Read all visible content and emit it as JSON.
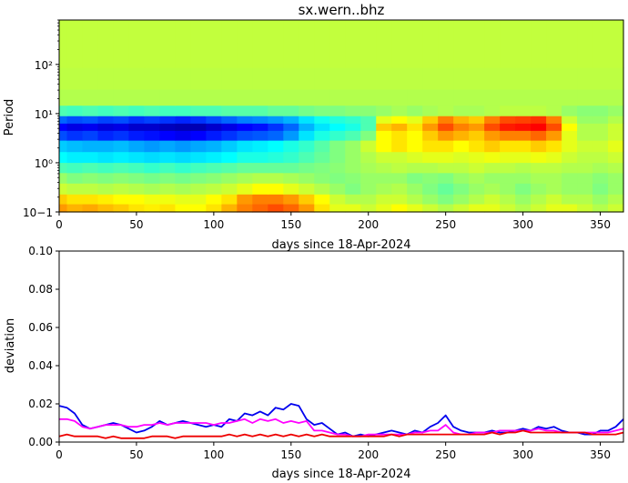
{
  "chart_data": [
    {
      "type": "heatmap",
      "title": "sx.wern..bhz",
      "xlabel": "days since 18-Apr-2024",
      "ylabel": "Period",
      "x_range": [
        0,
        365
      ],
      "x_ticks": [
        0,
        50,
        100,
        150,
        200,
        250,
        300,
        350
      ],
      "x_tick_labels": [
        "0",
        "50",
        "100",
        "150",
        "200",
        "250",
        "300",
        "350"
      ],
      "y_scale": "log",
      "y_range": [
        0.1,
        800
      ],
      "y_ticks": [
        0.1,
        1,
        10,
        100
      ],
      "y_tick_labels": [
        "10−1",
        "10⁰",
        "10¹",
        "10²"
      ],
      "colormap": "jet",
      "color_range": [
        -1,
        1
      ],
      "x": [
        0,
        10,
        20,
        30,
        40,
        50,
        60,
        70,
        80,
        90,
        100,
        110,
        120,
        130,
        140,
        150,
        160,
        170,
        180,
        190,
        200,
        210,
        220,
        230,
        240,
        250,
        260,
        270,
        280,
        290,
        300,
        310,
        320,
        330,
        340,
        350,
        360
      ],
      "y": [
        0.12,
        0.18,
        0.3,
        0.5,
        0.8,
        1.3,
        2.2,
        3.8,
        5.5,
        7.5,
        11,
        20,
        50,
        150,
        500
      ],
      "z": [
        [
          0.45,
          0.4,
          0.42,
          0.38,
          0.35,
          0.3,
          0.28,
          0.3,
          0.25,
          0.25,
          0.3,
          0.4,
          0.5,
          0.55,
          0.6,
          0.55,
          0.45,
          0.3,
          0.2,
          0.2,
          0.15,
          0.2,
          0.25,
          0.2,
          0.15,
          0.1,
          0.15,
          0.2,
          0.2,
          0.15,
          0.1,
          0.15,
          0.2,
          0.2,
          0.15,
          0.1,
          0.15
        ],
        [
          0.35,
          0.3,
          0.3,
          0.28,
          0.25,
          0.25,
          0.22,
          0.22,
          0.2,
          0.2,
          0.25,
          0.3,
          0.45,
          0.5,
          0.5,
          0.45,
          0.35,
          0.25,
          0.15,
          0.1,
          0.1,
          0.15,
          0.15,
          0.1,
          0.05,
          0.0,
          0.05,
          0.1,
          0.15,
          0.1,
          0.05,
          0.1,
          0.15,
          0.1,
          0.1,
          0.05,
          0.1
        ],
        [
          0.15,
          0.12,
          0.12,
          0.1,
          0.12,
          0.1,
          0.08,
          0.1,
          0.08,
          0.1,
          0.12,
          0.15,
          0.2,
          0.25,
          0.25,
          0.2,
          0.15,
          0.1,
          0.05,
          0.0,
          0.05,
          0.08,
          0.1,
          0.05,
          0.0,
          -0.05,
          0.0,
          0.05,
          0.08,
          0.05,
          0.0,
          0.05,
          0.08,
          0.05,
          0.05,
          0.0,
          0.05
        ],
        [
          0.05,
          0.0,
          0.02,
          0.0,
          0.02,
          0.0,
          -0.02,
          0.0,
          -0.02,
          0.0,
          0.02,
          0.05,
          0.08,
          0.1,
          0.1,
          0.08,
          0.05,
          0.02,
          0.0,
          0.02,
          0.05,
          0.05,
          0.05,
          0.0,
          0.02,
          0.0,
          0.05,
          0.08,
          0.05,
          0.05,
          0.05,
          0.08,
          0.08,
          0.05,
          0.05,
          0.02,
          0.05
        ],
        [
          -0.1,
          -0.12,
          -0.1,
          -0.12,
          -0.1,
          -0.12,
          -0.15,
          -0.12,
          -0.15,
          -0.12,
          -0.1,
          -0.08,
          -0.05,
          -0.05,
          -0.05,
          -0.05,
          -0.02,
          0.0,
          0.02,
          0.05,
          0.08,
          0.1,
          0.12,
          0.1,
          0.1,
          0.12,
          0.12,
          0.15,
          0.12,
          0.12,
          0.1,
          0.12,
          0.12,
          0.1,
          0.1,
          0.08,
          0.1
        ],
        [
          -0.25,
          -0.28,
          -0.28,
          -0.3,
          -0.28,
          -0.3,
          -0.32,
          -0.3,
          -0.32,
          -0.3,
          -0.28,
          -0.25,
          -0.2,
          -0.2,
          -0.18,
          -0.15,
          -0.1,
          -0.05,
          0.0,
          0.05,
          0.1,
          0.15,
          0.15,
          0.18,
          0.2,
          0.2,
          0.18,
          0.2,
          0.22,
          0.2,
          0.2,
          0.22,
          0.2,
          0.15,
          0.12,
          0.12,
          0.15
        ],
        [
          -0.35,
          -0.38,
          -0.4,
          -0.4,
          -0.38,
          -0.42,
          -0.45,
          -0.42,
          -0.45,
          -0.42,
          -0.4,
          -0.35,
          -0.3,
          -0.28,
          -0.25,
          -0.2,
          -0.15,
          -0.08,
          0.0,
          0.05,
          0.15,
          0.25,
          0.3,
          0.25,
          0.3,
          0.3,
          0.25,
          0.3,
          0.35,
          0.3,
          0.3,
          0.35,
          0.3,
          0.2,
          0.15,
          0.15,
          0.2
        ],
        [
          -0.6,
          -0.65,
          -0.62,
          -0.68,
          -0.65,
          -0.7,
          -0.72,
          -0.75,
          -0.78,
          -0.75,
          -0.7,
          -0.65,
          -0.6,
          -0.58,
          -0.55,
          -0.45,
          -0.3,
          -0.2,
          -0.15,
          -0.1,
          0.0,
          0.25,
          0.3,
          0.25,
          0.35,
          0.45,
          0.4,
          0.35,
          0.45,
          0.5,
          0.5,
          0.55,
          0.45,
          0.2,
          0.1,
          0.1,
          0.15
        ],
        [
          -0.75,
          -0.8,
          -0.78,
          -0.82,
          -0.8,
          -0.85,
          -0.85,
          -0.88,
          -0.9,
          -0.9,
          -0.85,
          -0.8,
          -0.75,
          -0.72,
          -0.65,
          -0.55,
          -0.4,
          -0.3,
          -0.25,
          -0.2,
          -0.1,
          0.35,
          0.4,
          0.3,
          0.45,
          0.6,
          0.5,
          0.45,
          0.6,
          0.7,
          0.72,
          0.75,
          0.6,
          0.25,
          0.1,
          0.1,
          0.15
        ],
        [
          -0.55,
          -0.6,
          -0.58,
          -0.62,
          -0.6,
          -0.65,
          -0.62,
          -0.65,
          -0.68,
          -0.65,
          -0.6,
          -0.55,
          -0.5,
          -0.48,
          -0.45,
          -0.4,
          -0.3,
          -0.22,
          -0.18,
          -0.15,
          -0.1,
          0.2,
          0.25,
          0.2,
          0.35,
          0.5,
          0.4,
          0.35,
          0.5,
          0.6,
          0.62,
          0.65,
          0.5,
          0.15,
          0.05,
          0.05,
          0.1
        ],
        [
          -0.1,
          -0.12,
          -0.1,
          -0.12,
          -0.1,
          -0.12,
          -0.1,
          -0.12,
          -0.12,
          -0.1,
          -0.1,
          -0.08,
          -0.08,
          -0.08,
          -0.05,
          -0.05,
          -0.02,
          0.0,
          0.0,
          0.02,
          0.02,
          0.05,
          0.08,
          0.05,
          0.08,
          0.1,
          0.08,
          0.08,
          0.1,
          0.12,
          0.12,
          0.12,
          0.1,
          0.05,
          0.02,
          0.02,
          0.05
        ],
        [
          0.1,
          0.1,
          0.1,
          0.1,
          0.1,
          0.1,
          0.1,
          0.1,
          0.1,
          0.1,
          0.1,
          0.1,
          0.1,
          0.1,
          0.1,
          0.1,
          0.1,
          0.1,
          0.1,
          0.1,
          0.1,
          0.1,
          0.1,
          0.1,
          0.1,
          0.1,
          0.1,
          0.1,
          0.1,
          0.1,
          0.1,
          0.1,
          0.1,
          0.1,
          0.1,
          0.1,
          0.1
        ],
        [
          0.12,
          0.12,
          0.12,
          0.12,
          0.12,
          0.12,
          0.12,
          0.12,
          0.12,
          0.12,
          0.12,
          0.12,
          0.12,
          0.12,
          0.12,
          0.12,
          0.12,
          0.12,
          0.12,
          0.12,
          0.12,
          0.12,
          0.12,
          0.12,
          0.12,
          0.12,
          0.12,
          0.12,
          0.12,
          0.12,
          0.12,
          0.12,
          0.12,
          0.12,
          0.12,
          0.12,
          0.12
        ],
        [
          0.13,
          0.13,
          0.13,
          0.13,
          0.13,
          0.13,
          0.13,
          0.13,
          0.13,
          0.13,
          0.13,
          0.13,
          0.13,
          0.13,
          0.13,
          0.13,
          0.13,
          0.13,
          0.13,
          0.13,
          0.13,
          0.13,
          0.13,
          0.13,
          0.13,
          0.13,
          0.13,
          0.13,
          0.13,
          0.13,
          0.13,
          0.13,
          0.13,
          0.13,
          0.13,
          0.13,
          0.13
        ],
        [
          0.13,
          0.13,
          0.13,
          0.13,
          0.13,
          0.13,
          0.13,
          0.13,
          0.13,
          0.13,
          0.13,
          0.13,
          0.13,
          0.13,
          0.13,
          0.13,
          0.13,
          0.13,
          0.13,
          0.13,
          0.13,
          0.13,
          0.13,
          0.13,
          0.13,
          0.13,
          0.13,
          0.13,
          0.13,
          0.13,
          0.13,
          0.13,
          0.13,
          0.13,
          0.13,
          0.13,
          0.13
        ]
      ]
    },
    {
      "type": "line",
      "title": "",
      "xlabel": "days since 18-Apr-2024",
      "ylabel": "deviation",
      "xlim": [
        0,
        365
      ],
      "ylim": [
        0,
        0.1
      ],
      "x_ticks": [
        0,
        50,
        100,
        150,
        200,
        250,
        300,
        350
      ],
      "x_tick_labels": [
        "0",
        "50",
        "100",
        "150",
        "200",
        "250",
        "300",
        "350"
      ],
      "y_ticks": [
        0,
        0.02,
        0.04,
        0.06,
        0.08,
        0.1
      ],
      "y_tick_labels": [
        "0.00",
        "0.02",
        "0.04",
        "0.06",
        "0.08",
        "0.10"
      ],
      "x": [
        0,
        5,
        10,
        15,
        20,
        25,
        30,
        35,
        40,
        45,
        50,
        55,
        60,
        65,
        70,
        75,
        80,
        85,
        90,
        95,
        100,
        105,
        110,
        115,
        120,
        125,
        130,
        135,
        140,
        145,
        150,
        155,
        160,
        165,
        170,
        175,
        180,
        185,
        190,
        195,
        200,
        205,
        210,
        215,
        220,
        225,
        230,
        235,
        240,
        245,
        250,
        255,
        260,
        265,
        270,
        275,
        280,
        285,
        290,
        295,
        300,
        305,
        310,
        315,
        320,
        325,
        330,
        335,
        340,
        345,
        350,
        355,
        360,
        365
      ],
      "series": [
        {
          "color": "#0000ee",
          "values": [
            0.019,
            0.018,
            0.015,
            0.009,
            0.007,
            0.008,
            0.009,
            0.01,
            0.009,
            0.007,
            0.005,
            0.006,
            0.008,
            0.011,
            0.009,
            0.01,
            0.011,
            0.01,
            0.009,
            0.008,
            0.009,
            0.008,
            0.012,
            0.011,
            0.015,
            0.014,
            0.016,
            0.014,
            0.018,
            0.017,
            0.02,
            0.019,
            0.012,
            0.009,
            0.01,
            0.007,
            0.004,
            0.005,
            0.003,
            0.004,
            0.003,
            0.004,
            0.005,
            0.006,
            0.005,
            0.004,
            0.006,
            0.005,
            0.008,
            0.01,
            0.014,
            0.008,
            0.006,
            0.005,
            0.005,
            0.005,
            0.006,
            0.005,
            0.005,
            0.006,
            0.007,
            0.006,
            0.008,
            0.007,
            0.008,
            0.006,
            0.005,
            0.005,
            0.004,
            0.004,
            0.006,
            0.006,
            0.008,
            0.012
          ]
        },
        {
          "color": "#ff00ff",
          "values": [
            0.012,
            0.012,
            0.011,
            0.008,
            0.007,
            0.008,
            0.009,
            0.009,
            0.009,
            0.008,
            0.008,
            0.009,
            0.009,
            0.01,
            0.009,
            0.01,
            0.01,
            0.01,
            0.01,
            0.01,
            0.009,
            0.01,
            0.01,
            0.011,
            0.012,
            0.01,
            0.012,
            0.011,
            0.012,
            0.01,
            0.011,
            0.01,
            0.011,
            0.006,
            0.006,
            0.005,
            0.004,
            0.004,
            0.003,
            0.003,
            0.004,
            0.004,
            0.004,
            0.004,
            0.004,
            0.004,
            0.005,
            0.005,
            0.006,
            0.006,
            0.009,
            0.005,
            0.004,
            0.004,
            0.005,
            0.005,
            0.005,
            0.006,
            0.006,
            0.006,
            0.006,
            0.006,
            0.007,
            0.006,
            0.006,
            0.005,
            0.005,
            0.005,
            0.005,
            0.005,
            0.005,
            0.005,
            0.006,
            0.007
          ]
        },
        {
          "color": "#ee0000",
          "values": [
            0.003,
            0.004,
            0.003,
            0.003,
            0.003,
            0.003,
            0.002,
            0.003,
            0.002,
            0.002,
            0.002,
            0.002,
            0.003,
            0.003,
            0.003,
            0.002,
            0.003,
            0.003,
            0.003,
            0.003,
            0.003,
            0.003,
            0.004,
            0.003,
            0.004,
            0.003,
            0.004,
            0.003,
            0.004,
            0.003,
            0.004,
            0.003,
            0.004,
            0.003,
            0.004,
            0.003,
            0.003,
            0.003,
            0.003,
            0.003,
            0.003,
            0.003,
            0.003,
            0.004,
            0.003,
            0.004,
            0.004,
            0.004,
            0.004,
            0.004,
            0.004,
            0.004,
            0.004,
            0.004,
            0.004,
            0.004,
            0.005,
            0.004,
            0.005,
            0.005,
            0.006,
            0.005,
            0.005,
            0.005,
            0.005,
            0.005,
            0.005,
            0.005,
            0.005,
            0.004,
            0.004,
            0.004,
            0.004,
            0.005
          ]
        }
      ]
    }
  ]
}
